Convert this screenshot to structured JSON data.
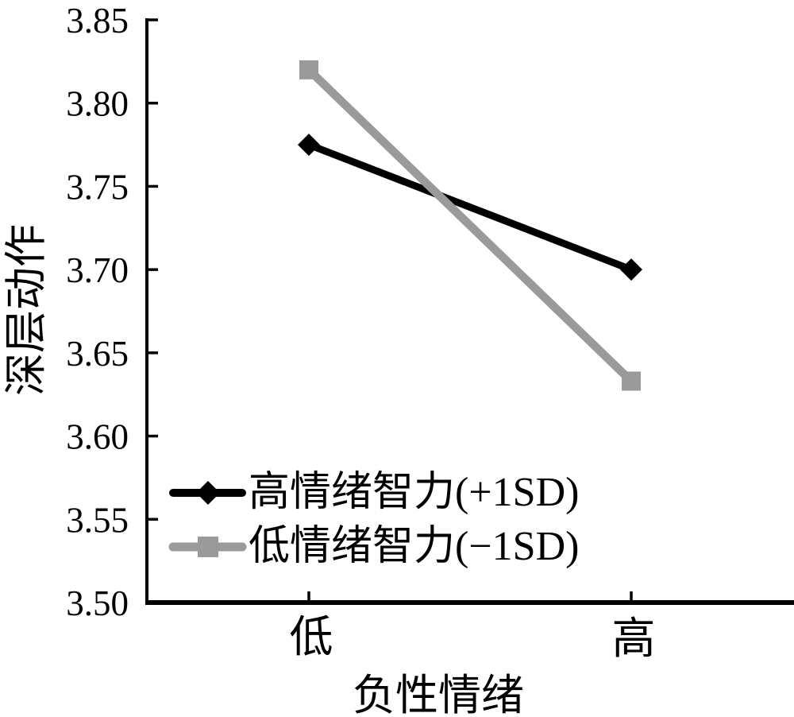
{
  "chart_data": {
    "type": "line",
    "title": "",
    "xlabel": "负性情绪",
    "ylabel": "深层动作",
    "categories": [
      "低",
      "高"
    ],
    "series": [
      {
        "id": "high-ei",
        "name": "高情绪智力(+1SD)",
        "color": "#000000",
        "marker": "diamond",
        "values": [
          3.775,
          3.7
        ]
      },
      {
        "id": "low-ei",
        "name": "低情绪智力(−1SD)",
        "color": "#9a9a9a",
        "marker": "square",
        "values": [
          3.82,
          3.633
        ]
      }
    ],
    "ylim": [
      3.5,
      3.85
    ],
    "ytick_step": 0.05,
    "yticks": [
      "3.85",
      "3.80",
      "3.75",
      "3.70",
      "3.65",
      "3.60",
      "3.55",
      "3.50"
    ],
    "grid": false,
    "legend_position": "inside-bottom-left",
    "axis_color": "#000000",
    "background_color": "#ffffff"
  }
}
